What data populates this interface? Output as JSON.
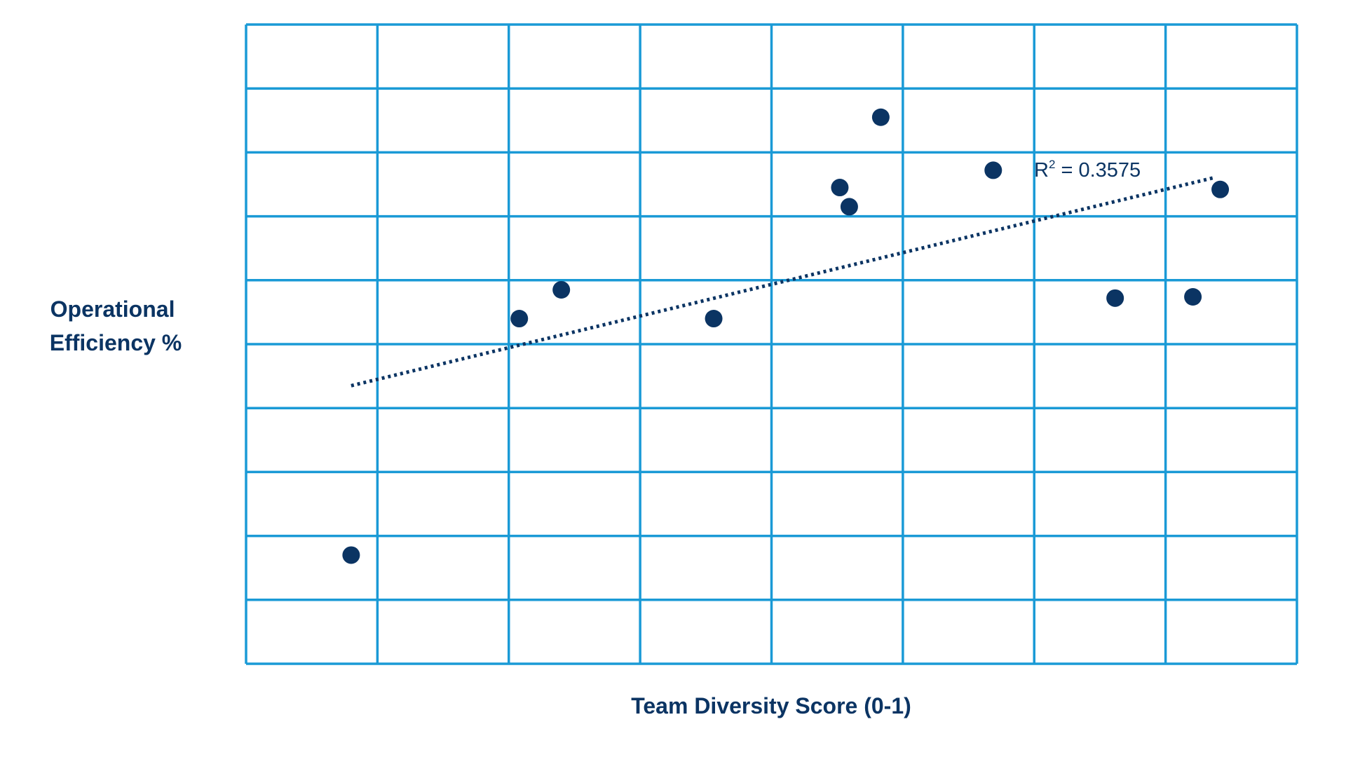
{
  "colors": {
    "grid": "#1a9ad6",
    "point": "#0b3463",
    "text": "#0b3463",
    "trendline": "#0b3463"
  },
  "chart_data": {
    "type": "scatter",
    "title": "",
    "xlabel": "Team Diversity Score (0-1)",
    "ylabel_lines": [
      "Operational",
      "Efficiency %"
    ],
    "xlim": [
      0,
      1
    ],
    "ylim": [
      0,
      10
    ],
    "x_ticks": [
      0,
      0.125,
      0.25,
      0.375,
      0.5,
      0.625,
      0.75,
      0.875,
      1
    ],
    "y_ticks": [
      0,
      1,
      2,
      3,
      4,
      5,
      6,
      7,
      8,
      9,
      10
    ],
    "x_tick_labels_shown": false,
    "y_tick_labels_shown": false,
    "grid": true,
    "legend": "none",
    "series": [
      {
        "points": [
          {
            "x": 0.1,
            "y": 1.7
          },
          {
            "x": 0.26,
            "y": 5.4
          },
          {
            "x": 0.3,
            "y": 5.85
          },
          {
            "x": 0.445,
            "y": 5.4
          },
          {
            "x": 0.565,
            "y": 7.45
          },
          {
            "x": 0.574,
            "y": 7.15
          },
          {
            "x": 0.604,
            "y": 8.55
          },
          {
            "x": 0.711,
            "y": 7.72
          },
          {
            "x": 0.827,
            "y": 5.72
          },
          {
            "x": 0.901,
            "y": 5.74
          },
          {
            "x": 0.927,
            "y": 7.42
          }
        ]
      }
    ],
    "trendline": {
      "type": "linear",
      "x": [
        0.1,
        0.92
      ],
      "y": [
        4.35,
        7.6
      ],
      "style": "dotted",
      "r_squared_label": {
        "base": "R",
        "superscript": "2",
        "rest": " = 0.3575"
      }
    }
  }
}
